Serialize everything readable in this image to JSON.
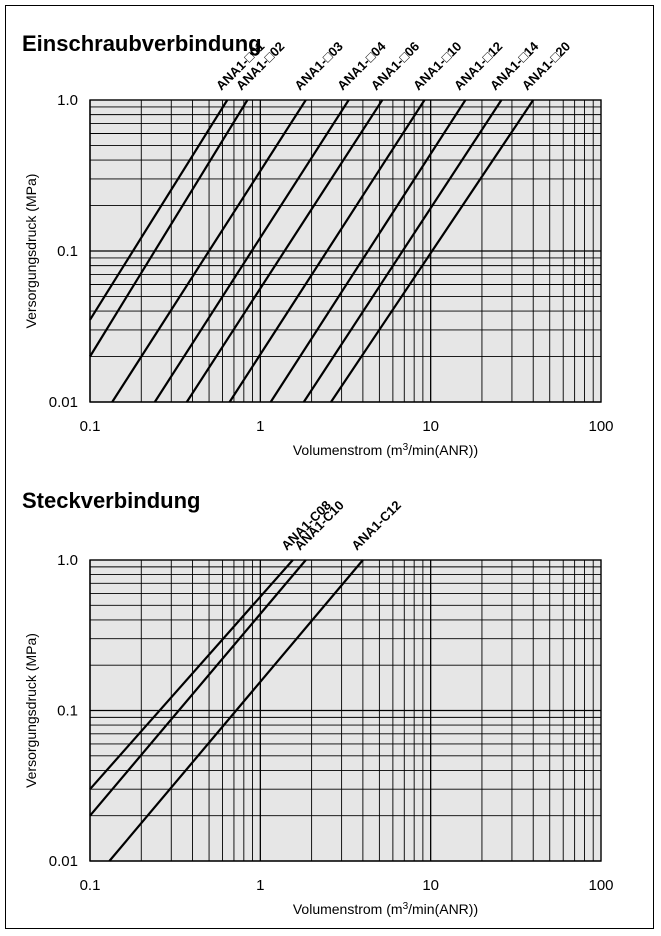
{
  "chart_data": [
    {
      "type": "line",
      "title": "Einschraubverbindung",
      "xlabel": "Volumenstrom (m³/min(ANR))",
      "ylabel": "Versorgungsdruck (MPa)",
      "x_scale": "log",
      "y_scale": "log",
      "xlim": [
        0.1,
        100
      ],
      "ylim": [
        0.01,
        1.0
      ],
      "x_ticks": [
        "0.1",
        "1",
        "10",
        "100"
      ],
      "y_ticks": [
        "0.01",
        "0.1",
        "1.0"
      ],
      "grid": true,
      "series": [
        {
          "name": "ANA1-□01",
          "x": [
            0.1,
            0.64
          ],
          "y": [
            0.035,
            1.0
          ]
        },
        {
          "name": "ANA1-□02",
          "x": [
            0.1,
            0.84
          ],
          "y": [
            0.02,
            1.0
          ]
        },
        {
          "name": "ANA1-□03",
          "x": [
            0.135,
            1.85
          ],
          "y": [
            0.01,
            1.0
          ]
        },
        {
          "name": "ANA1-□04",
          "x": [
            0.24,
            3.3
          ],
          "y": [
            0.01,
            1.0
          ]
        },
        {
          "name": "ANA1-□06",
          "x": [
            0.37,
            5.2
          ],
          "y": [
            0.01,
            1.0
          ]
        },
        {
          "name": "ANA1-□10",
          "x": [
            0.66,
            9.2
          ],
          "y": [
            0.01,
            1.0
          ]
        },
        {
          "name": "ANA1-□12",
          "x": [
            1.15,
            16
          ],
          "y": [
            0.01,
            1.0
          ]
        },
        {
          "name": "ANA1-□14",
          "x": [
            1.8,
            26
          ],
          "y": [
            0.01,
            1.0
          ]
        },
        {
          "name": "ANA1-□20",
          "x": [
            2.6,
            40
          ],
          "y": [
            0.01,
            1.0
          ]
        }
      ]
    },
    {
      "type": "line",
      "title": "Steckverbindung",
      "xlabel": "Volumenstrom (m³/min(ANR))",
      "ylabel": "Versorgungsdruck (MPa)",
      "x_scale": "log",
      "y_scale": "log",
      "xlim": [
        0.1,
        100
      ],
      "ylim": [
        0.01,
        1.0
      ],
      "x_ticks": [
        "0.1",
        "1",
        "10",
        "100"
      ],
      "y_ticks": [
        "0.01",
        "0.1",
        "1.0"
      ],
      "grid": true,
      "series": [
        {
          "name": "ANA1-C08",
          "x": [
            0.1,
            1.55
          ],
          "y": [
            0.03,
            1.0
          ]
        },
        {
          "name": "ANA1-C10",
          "x": [
            0.1,
            1.85
          ],
          "y": [
            0.02,
            1.0
          ]
        },
        {
          "name": "ANA1-C12",
          "x": [
            0.13,
            4.0
          ],
          "y": [
            0.01,
            1.0
          ]
        }
      ]
    }
  ]
}
